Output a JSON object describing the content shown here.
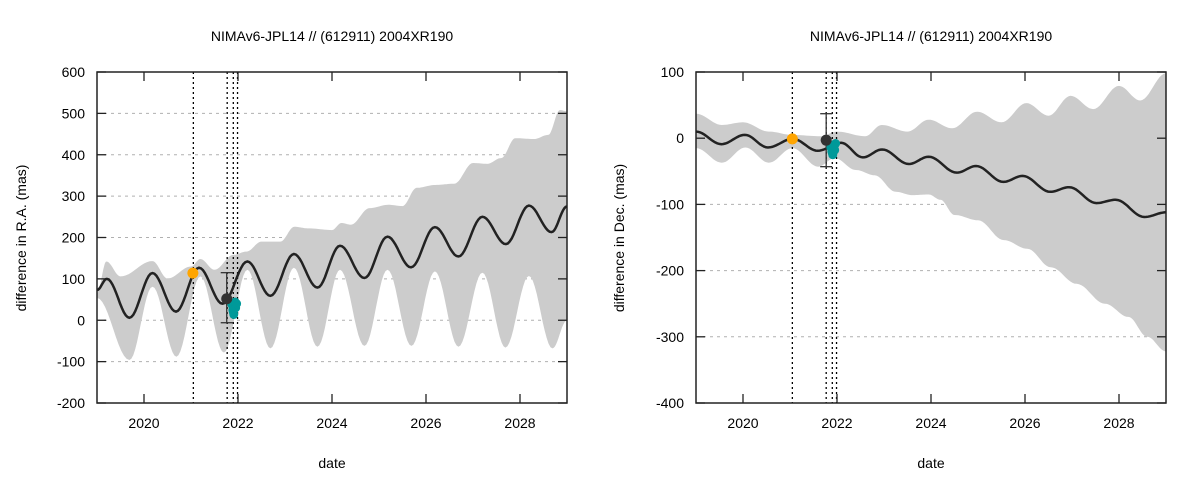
{
  "chart_data": [
    {
      "type": "line",
      "title": "NIMAv6-JPL14 // (612911) 2004XR190",
      "xlabel": "date",
      "ylabel": "difference in R.A. (mas)",
      "xlim": [
        2019,
        2029
      ],
      "ylim": [
        -200,
        600
      ],
      "xticks": [
        2020,
        2022,
        2024,
        2026,
        2028
      ],
      "yticks": [
        -200,
        -100,
        0,
        100,
        200,
        300,
        400,
        500,
        600
      ],
      "grid": "horizontal dashed",
      "legend": "none",
      "colors": {
        "model": "#222222",
        "band": "#cccccc",
        "orbit_point": "#333333",
        "orange_point": "#ffa500",
        "teal_points": "#009999",
        "epoch_lines": "#000000"
      },
      "model_curve": {
        "x": [
          2019.0,
          2019.21,
          2019.69,
          2020.18,
          2020.68,
          2021.17,
          2021.67,
          2022.2,
          2022.69,
          2023.19,
          2023.69,
          2024.17,
          2024.69,
          2025.18,
          2025.68,
          2026.19,
          2026.69,
          2027.2,
          2027.7,
          2028.19,
          2028.67,
          2029.0
        ],
        "y": [
          73,
          100,
          6,
          114,
          21,
          127,
          40,
          142,
          59,
          160,
          79,
          180,
          102,
          202,
          128,
          225,
          154,
          250,
          184,
          277,
          213,
          275
        ]
      },
      "uncertainty_band": {
        "upper": {
          "x": [
            2019.0,
            2019.2,
            2019.5,
            2020.18,
            2020.5,
            2021.0,
            2021.2,
            2021.5,
            2021.9,
            2022.18,
            2022.5,
            2022.9,
            2023.2,
            2023.5,
            2024.0,
            2024.2,
            2024.4,
            2024.8,
            2025.2,
            2025.5,
            2025.8,
            2026.2,
            2026.6,
            2027.0,
            2027.3,
            2027.6,
            2027.9,
            2028.3,
            2028.6,
            2028.85,
            2029.0
          ],
          "y": [
            66,
            142,
            106,
            143,
            101,
            130,
            148,
            122,
            158,
            166,
            190,
            190,
            226,
            222,
            218,
            235,
            231,
            271,
            279,
            276,
            320,
            327,
            330,
            380,
            378,
            392,
            440,
            438,
            448,
            508,
            505
          ]
        },
        "lower": {
          "x": [
            2019.0,
            2019.69,
            2020.18,
            2020.69,
            2021.2,
            2021.7,
            2022.2,
            2022.69,
            2023.19,
            2023.69,
            2024.17,
            2024.69,
            2025.18,
            2025.69,
            2026.19,
            2026.69,
            2027.2,
            2027.69,
            2028.19,
            2028.69,
            2029.0
          ],
          "y": [
            54,
            -96,
            81,
            -88,
            106,
            -78,
            122,
            -68,
            127,
            -64,
            122,
            -62,
            122,
            -62,
            118,
            -64,
            115,
            -66,
            107,
            -68,
            0
          ]
        }
      },
      "epoch_lines": [
        2021.05,
        2021.77,
        2021.9,
        2021.99
      ],
      "orange_point": {
        "x": 2021.04,
        "y": 114
      },
      "orbit_point": {
        "x": 2021.76,
        "y": 52,
        "err_low": -6,
        "err_high": 115
      },
      "teal_points": {
        "x": [
          2021.87,
          2021.89,
          2021.91,
          2021.93,
          2021.95,
          2021.97,
          2021.9,
          2021.94
        ],
        "y": [
          38,
          25,
          14,
          42,
          30,
          40,
          20,
          44
        ]
      }
    },
    {
      "type": "line",
      "title": "NIMAv6-JPL14 // (612911) 2004XR190",
      "xlabel": "date",
      "ylabel": "difference in Dec. (mas)",
      "xlim": [
        2019,
        2029
      ],
      "ylim": [
        -400,
        100
      ],
      "xticks": [
        2020,
        2022,
        2024,
        2026,
        2028
      ],
      "yticks": [
        -400,
        -300,
        -200,
        -100,
        0,
        100
      ],
      "grid": "horizontal dashed",
      "legend": "none",
      "colors": {
        "model": "#222222",
        "band": "#cccccc",
        "orbit_point": "#333333",
        "orange_point": "#ffa500",
        "teal_points": "#009999",
        "epoch_lines": "#000000"
      },
      "model_curve": {
        "x": [
          2019.0,
          2019.54,
          2020.04,
          2020.53,
          2021.06,
          2021.59,
          2022.09,
          2022.55,
          2022.96,
          2023.53,
          2023.95,
          2024.55,
          2024.96,
          2025.54,
          2025.95,
          2026.54,
          2026.94,
          2027.52,
          2027.93,
          2028.54,
          2029.0
        ],
        "y": [
          10,
          -9,
          5,
          -14,
          -1,
          -19,
          -7,
          -29,
          -17,
          -39,
          -28,
          -52,
          -42,
          -66,
          -57,
          -81,
          -74,
          -98,
          -93,
          -119,
          -112
        ]
      },
      "uncertainty_band": {
        "upper": {
          "x": [
            2019.0,
            2019.55,
            2020.0,
            2020.55,
            2021.05,
            2021.65,
            2022.0,
            2022.6,
            2022.95,
            2023.5,
            2023.95,
            2024.45,
            2024.98,
            2025.5,
            2026.03,
            2026.5,
            2026.97,
            2027.45,
            2028.0,
            2028.45,
            2029.0
          ],
          "y": [
            37,
            20,
            24,
            10,
            5,
            3,
            10,
            3,
            20,
            10,
            28,
            15,
            40,
            24,
            53,
            34,
            64,
            44,
            79,
            57,
            98
          ]
        },
        "lower": {
          "x": [
            2019.0,
            2019.55,
            2020.05,
            2020.55,
            2021.05,
            2021.6,
            2021.95,
            2022.4,
            2022.8,
            2023.25,
            2023.6,
            2023.95,
            2024.2,
            2024.5,
            2025.0,
            2025.55,
            2026.05,
            2026.55,
            2027.1,
            2027.7,
            2028.2,
            2028.6,
            2029.0
          ],
          "y": [
            -15,
            -37,
            -14,
            -37,
            -15,
            -43,
            -30,
            -48,
            -56,
            -81,
            -86,
            -85,
            -93,
            -116,
            -124,
            -154,
            -167,
            -195,
            -220,
            -250,
            -270,
            -300,
            -322
          ]
        }
      },
      "epoch_lines": [
        2021.05,
        2021.77,
        2021.9,
        2021.99
      ],
      "orange_point": {
        "x": 2021.05,
        "y": -1
      },
      "orbit_point": {
        "x": 2021.77,
        "y": -3,
        "err_low": -43,
        "err_high": 37
      },
      "teal_points": {
        "x": [
          2021.87,
          2021.89,
          2021.91,
          2021.93,
          2021.95,
          2021.97,
          2021.9,
          2021.94
        ],
        "y": [
          -14,
          -20,
          -25,
          -10,
          -18,
          -8,
          -22,
          -12
        ]
      }
    }
  ]
}
